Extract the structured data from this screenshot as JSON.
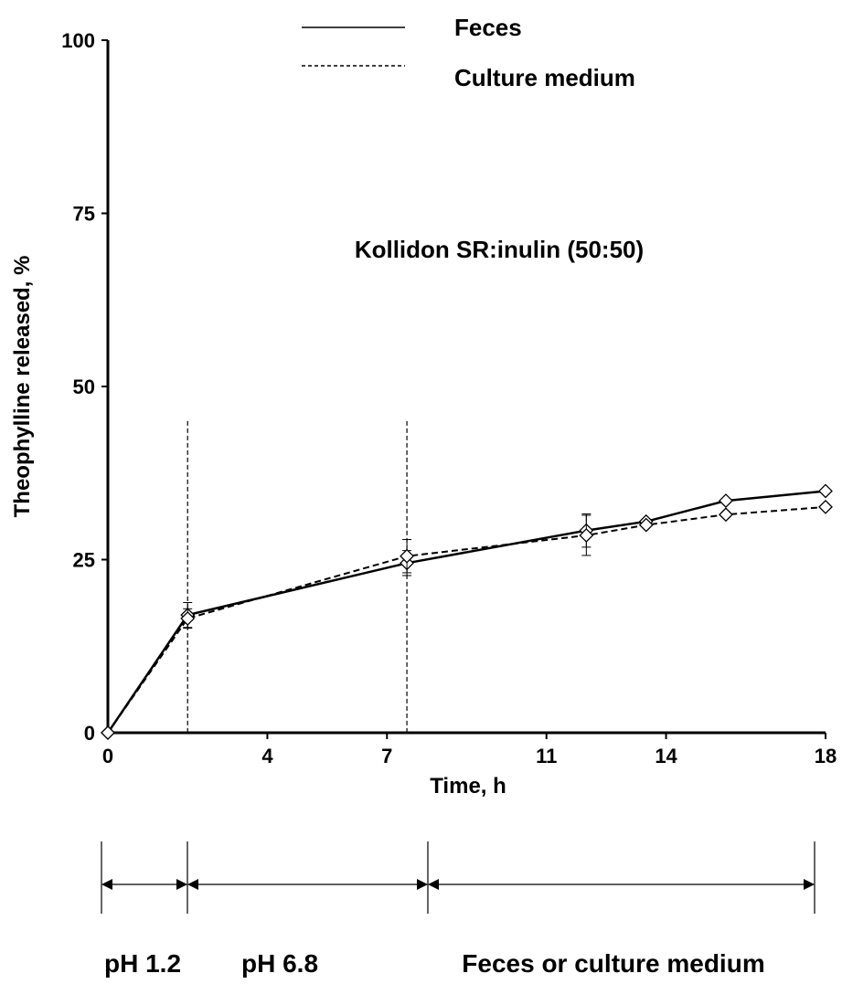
{
  "chart_data": {
    "type": "line",
    "title": "",
    "annotation": "Kollidon SR:inulin (50:50)",
    "xlabel": "Time, h",
    "ylabel": "Theophylline released, %",
    "xlim": [
      0,
      18
    ],
    "ylim": [
      0,
      100
    ],
    "x_ticks": [
      0,
      4,
      7,
      11,
      14,
      18
    ],
    "y_ticks": [
      0,
      25,
      50,
      75,
      100
    ],
    "grid": false,
    "legend_position": "top",
    "series": [
      {
        "name": "Feces",
        "line_style": "solid",
        "x": [
          0,
          2,
          7.5,
          12,
          13.5,
          15.5,
          18
        ],
        "y": [
          0,
          17,
          24.5,
          29.2,
          30.5,
          33.5,
          34.9
        ],
        "error": [
          0,
          1.8,
          1.8,
          2.4,
          0,
          0,
          0
        ]
      },
      {
        "name": "Culture medium",
        "line_style": "dashed",
        "x": [
          0,
          2,
          7.5,
          12,
          13.5,
          15.5,
          18
        ],
        "y": [
          0,
          16.5,
          25.5,
          28.5,
          30,
          31.5,
          32.6
        ],
        "error": [
          0,
          1.4,
          2.4,
          2.9,
          0,
          0,
          0
        ]
      }
    ],
    "phase_markers": {
      "x": [
        2,
        7.5
      ],
      "y_top": 45
    },
    "phases": [
      {
        "label": "pH 1.2",
        "x_start": 0,
        "x_end": 2
      },
      {
        "label": "pH 6.8",
        "x_start": 2,
        "x_end": 7.5
      },
      {
        "label": "Feces or culture medium",
        "x_start": 7.5,
        "x_end": 18
      }
    ]
  }
}
